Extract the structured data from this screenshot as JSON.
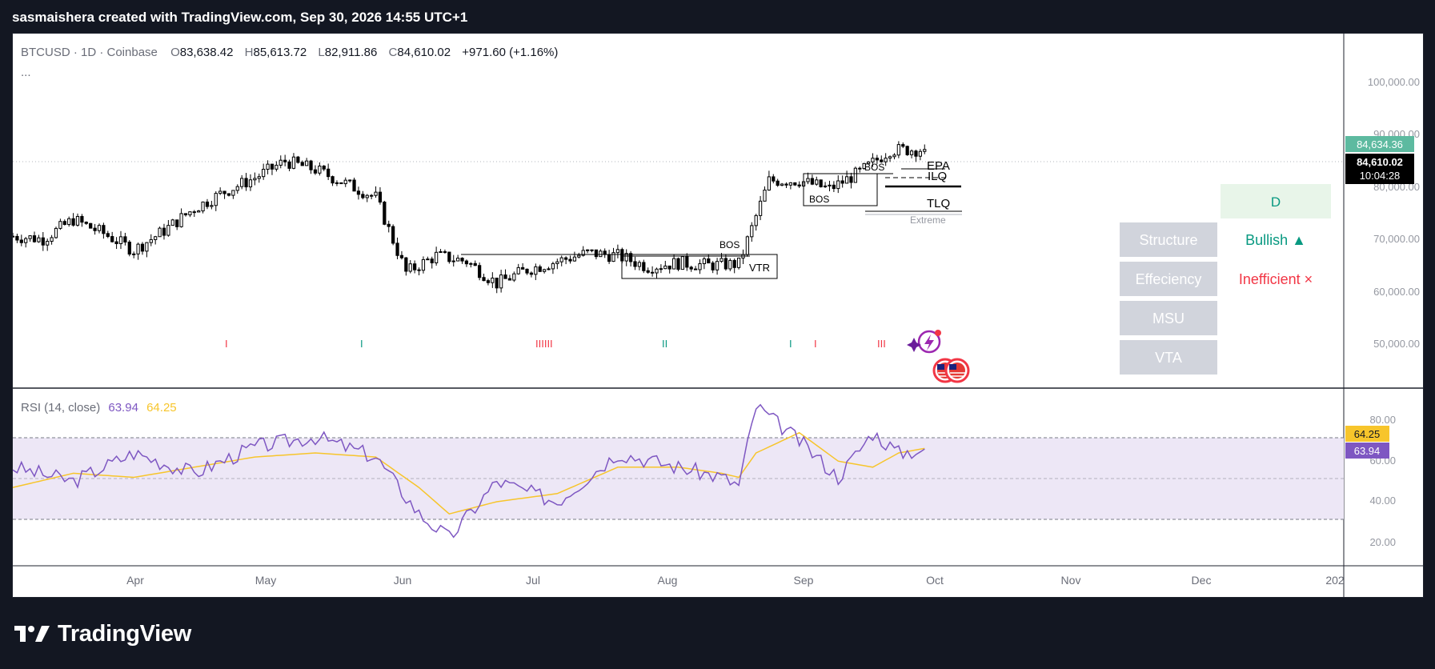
{
  "header": {
    "credit": "sasmaishera created with TradingView.com, Sep 30, 2026 14:55 UTC+1"
  },
  "legend": {
    "symbol": "BTCUSD · 1D · Coinbase",
    "o_label": "O",
    "o_value": "83,638.42",
    "h_label": "H",
    "h_value": "85,613.72",
    "l_label": "L",
    "l_value": "82,911.86",
    "c_label": "C",
    "c_value": "84,610.02",
    "change": "+971.60 (+1.16%)",
    "more": "..."
  },
  "price_axis": {
    "ticks": [
      "100,000.00",
      "90,000.00",
      "80,000.00",
      "70,000.00",
      "60,000.00",
      "50,000.00"
    ],
    "badge_top": "84,634.36",
    "badge_price": "84,610.02",
    "badge_countdown": "10:04:28"
  },
  "rsi": {
    "label": "RSI (14, close)",
    "value": "63.94",
    "ma_value": "64.25",
    "ticks": [
      "80.00",
      "60.00",
      "40.00",
      "20.00"
    ],
    "badge_ma": "64.25",
    "badge_value": "63.94"
  },
  "time_axis": {
    "labels": [
      "Apr",
      "May",
      "Jun",
      "Jul",
      "Aug",
      "Sep",
      "Oct",
      "Nov",
      "Dec",
      "202"
    ]
  },
  "annotations": {
    "bos": [
      "BOS",
      "BOS",
      "BOS",
      "BOS"
    ],
    "vtr": "VTR",
    "epa": "EPA",
    "ilq": "ILQ",
    "tlq": "TLQ",
    "extreme": "Extreme",
    "markers_red": [
      "I",
      "IIIIII",
      "I",
      "III"
    ],
    "markers_green": [
      "I",
      "II",
      "I"
    ]
  },
  "status_table": {
    "timeframe": "D",
    "rows": [
      {
        "label": "Structure",
        "value": "Bullish ▲",
        "status": "bullish"
      },
      {
        "label": "Effeciency",
        "value": "Inefficient ×",
        "status": "bearish"
      },
      {
        "label": "MSU",
        "value": ""
      },
      {
        "label": "VTA",
        "value": ""
      }
    ]
  },
  "colors": {
    "background": "#131722",
    "candle_body": "#000000",
    "rsi_line": "#7e57c2",
    "rsi_ma": "#f7c52b",
    "rsi_band": "#ede7f6",
    "bullish": "#089981",
    "bearish": "#f23645",
    "badge_green": "#5dbaa0"
  },
  "footer": {
    "brand": "TradingView",
    "logo_icon": "tradingview-logo-icon"
  },
  "chart_data": {
    "type": "candlestick",
    "title": "BTCUSD · 1D · Coinbase",
    "ylim": [
      45000,
      104000
    ],
    "x_range": [
      "2026-03-03",
      "2027-01-05"
    ],
    "anchors_note_excluded": true,
    "series": [
      {
        "name": "BTCUSD",
        "x": [
          "2026-03-03",
          "2026-03-10",
          "2026-03-17",
          "2026-03-24",
          "2026-03-31",
          "2026-04-07",
          "2026-04-14",
          "2026-04-21",
          "2026-04-28",
          "2026-05-05",
          "2026-05-12",
          "2026-05-19",
          "2026-05-26",
          "2026-06-02",
          "2026-06-09",
          "2026-06-16",
          "2026-06-23",
          "2026-06-30",
          "2026-07-07",
          "2026-07-14",
          "2026-07-21",
          "2026-07-28",
          "2026-08-04",
          "2026-08-11",
          "2026-08-18",
          "2026-08-25",
          "2026-09-01",
          "2026-09-08",
          "2026-09-15",
          "2026-09-22",
          "2026-09-30"
        ],
        "close": [
          69000,
          68500,
          72000,
          69500,
          66500,
          70000,
          74000,
          77000,
          79500,
          82500,
          81000,
          78500,
          76000,
          62500,
          65500,
          64500,
          60500,
          63000,
          64500,
          66000,
          65500,
          63500,
          64200,
          63800,
          64000,
          79000,
          79000,
          77500,
          80500,
          84500,
          84610
        ]
      }
    ],
    "levels": [
      {
        "label": "EPA",
        "y": 83200
      },
      {
        "label": "ILQ",
        "y": 81000
      },
      {
        "label": "TLQ",
        "y": 76500
      },
      {
        "label": "Extreme",
        "y": 75200
      }
    ],
    "rsi": {
      "name": "RSI (14, close)",
      "ylim": [
        10,
        90
      ],
      "bands": [
        30,
        50,
        70
      ],
      "x": [
        "2026-03-03",
        "2026-03-17",
        "2026-03-31",
        "2026-04-14",
        "2026-04-28",
        "2026-05-12",
        "2026-05-26",
        "2026-06-05",
        "2026-06-12",
        "2026-06-23",
        "2026-07-07",
        "2026-07-21",
        "2026-08-04",
        "2026-08-14",
        "2026-08-18",
        "2026-08-22",
        "2026-09-01",
        "2026-09-10",
        "2026-09-18",
        "2026-09-24",
        "2026-09-30"
      ],
      "values": [
        55,
        48,
        62,
        52,
        65,
        70,
        60,
        32,
        20,
        48,
        38,
        62,
        55,
        50,
        46,
        85,
        68,
        50,
        72,
        62,
        63.94
      ],
      "ma": [
        45,
        52,
        50,
        55,
        60,
        62,
        60,
        45,
        32,
        38,
        42,
        55,
        55,
        52,
        50,
        62,
        72,
        58,
        55,
        62,
        64.25
      ]
    }
  }
}
